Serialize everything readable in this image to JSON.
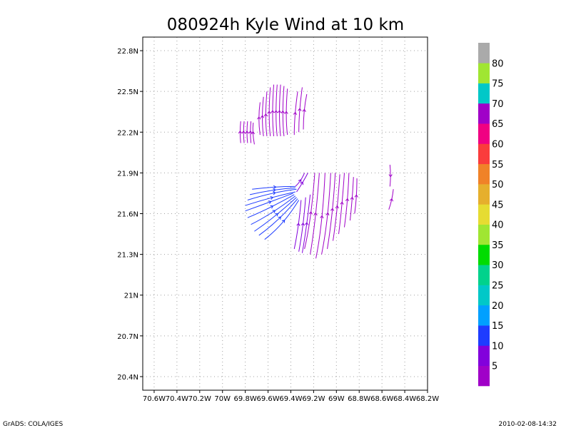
{
  "chart_data": {
    "type": "streamline",
    "title": "080924h Kyle Wind at 10 km",
    "xlim": [
      -70.7,
      -68.2
    ],
    "ylim": [
      20.3,
      22.9
    ],
    "x_ticks": [
      {
        "value": -70.6,
        "label": "70.6W"
      },
      {
        "value": -70.4,
        "label": "70.4W"
      },
      {
        "value": -70.2,
        "label": "70.2W"
      },
      {
        "value": -70.0,
        "label": "70W"
      },
      {
        "value": -69.8,
        "label": "69.8W"
      },
      {
        "value": -69.6,
        "label": "69.6W"
      },
      {
        "value": -69.4,
        "label": "69.4W"
      },
      {
        "value": -69.2,
        "label": "69.2W"
      },
      {
        "value": -69.0,
        "label": "69W"
      },
      {
        "value": -68.8,
        "label": "68.8W"
      },
      {
        "value": -68.6,
        "label": "68.6W"
      },
      {
        "value": -68.4,
        "label": "68.4W"
      },
      {
        "value": -68.2,
        "label": "68.2W"
      }
    ],
    "y_ticks": [
      {
        "value": 20.4,
        "label": "20.4N"
      },
      {
        "value": 20.7,
        "label": "20.7N"
      },
      {
        "value": 21.0,
        "label": "21N"
      },
      {
        "value": 21.3,
        "label": "21.3N"
      },
      {
        "value": 21.6,
        "label": "21.6N"
      },
      {
        "value": 21.9,
        "label": "21.9N"
      },
      {
        "value": 22.2,
        "label": "22.2N"
      },
      {
        "value": 22.5,
        "label": "22.5N"
      },
      {
        "value": 22.8,
        "label": "22.8N"
      }
    ],
    "grid": true,
    "colorbar": {
      "colors": [
        "#a000c8",
        "#8200dc",
        "#1e3cff",
        "#00a0ff",
        "#00c8c8",
        "#00d28c",
        "#00dc00",
        "#a0e632",
        "#e6dc32",
        "#e6af2d",
        "#f08228",
        "#fa3c3c",
        "#f00082",
        "#a000c8",
        "#00c8c8",
        "#a0e632",
        "#aaaaaa"
      ],
      "labels": [
        "5",
        "10",
        "15",
        "20",
        "25",
        "30",
        "35",
        "40",
        "45",
        "50",
        "55",
        "60",
        "65",
        "70",
        "75",
        "80"
      ]
    },
    "streamlines": [
      {
        "color": "#a000c8",
        "points": [
          [
            -69.84,
            22.12
          ],
          [
            -69.85,
            22.2
          ],
          [
            -69.84,
            22.28
          ]
        ]
      },
      {
        "color": "#a000c8",
        "points": [
          [
            -69.81,
            22.12
          ],
          [
            -69.82,
            22.2
          ],
          [
            -69.81,
            22.28
          ]
        ]
      },
      {
        "color": "#a000c8",
        "points": [
          [
            -69.78,
            22.12
          ],
          [
            -69.79,
            22.2
          ],
          [
            -69.78,
            22.28
          ]
        ]
      },
      {
        "color": "#a000c8",
        "points": [
          [
            -69.75,
            22.12
          ],
          [
            -69.76,
            22.2
          ],
          [
            -69.75,
            22.28
          ]
        ]
      },
      {
        "color": "#a000c8",
        "points": [
          [
            -69.72,
            22.11
          ],
          [
            -69.74,
            22.2
          ],
          [
            -69.73,
            22.27
          ]
        ]
      },
      {
        "color": "#a000c8",
        "points": [
          [
            -69.67,
            22.18
          ],
          [
            -69.69,
            22.3
          ],
          [
            -69.67,
            22.42
          ]
        ]
      },
      {
        "color": "#a000c8",
        "points": [
          [
            -69.64,
            22.17
          ],
          [
            -69.66,
            22.3
          ],
          [
            -69.64,
            22.46
          ]
        ]
      },
      {
        "color": "#a000c8",
        "points": [
          [
            -69.61,
            22.17
          ],
          [
            -69.63,
            22.3
          ],
          [
            -69.61,
            22.5
          ]
        ]
      },
      {
        "color": "#a000c8",
        "points": [
          [
            -69.58,
            22.17
          ],
          [
            -69.6,
            22.32
          ],
          [
            -69.58,
            22.53
          ]
        ]
      },
      {
        "color": "#a000c8",
        "points": [
          [
            -69.55,
            22.17
          ],
          [
            -69.57,
            22.32
          ],
          [
            -69.55,
            22.55
          ]
        ]
      },
      {
        "color": "#a000c8",
        "points": [
          [
            -69.52,
            22.17
          ],
          [
            -69.54,
            22.32
          ],
          [
            -69.52,
            22.55
          ]
        ]
      },
      {
        "color": "#a000c8",
        "points": [
          [
            -69.49,
            22.17
          ],
          [
            -69.51,
            22.32
          ],
          [
            -69.49,
            22.55
          ]
        ]
      },
      {
        "color": "#a000c8",
        "points": [
          [
            -69.46,
            22.17
          ],
          [
            -69.48,
            22.32
          ],
          [
            -69.46,
            22.54
          ]
        ]
      },
      {
        "color": "#a000c8",
        "points": [
          [
            -69.43,
            22.18
          ],
          [
            -69.45,
            22.32
          ],
          [
            -69.43,
            22.52
          ]
        ]
      },
      {
        "color": "#a000c8",
        "points": [
          [
            -69.37,
            22.18
          ],
          [
            -69.37,
            22.32
          ],
          [
            -69.34,
            22.5
          ]
        ]
      },
      {
        "color": "#a000c8",
        "points": [
          [
            -69.33,
            22.2
          ],
          [
            -69.33,
            22.35
          ],
          [
            -69.3,
            22.53
          ]
        ]
      },
      {
        "color": "#a000c8",
        "points": [
          [
            -69.29,
            22.22
          ],
          [
            -69.29,
            22.36
          ],
          [
            -69.26,
            22.48
          ]
        ]
      },
      {
        "color": "#1e3cff",
        "points": [
          [
            -69.74,
            21.78
          ],
          [
            -69.55,
            21.8
          ],
          [
            -69.36,
            21.8
          ]
        ]
      },
      {
        "color": "#1e3cff",
        "points": [
          [
            -69.76,
            21.74
          ],
          [
            -69.55,
            21.78
          ],
          [
            -69.36,
            21.79
          ]
        ]
      },
      {
        "color": "#1e3cff",
        "points": [
          [
            -69.78,
            21.7
          ],
          [
            -69.55,
            21.76
          ],
          [
            -69.35,
            21.78
          ]
        ]
      },
      {
        "color": "#1e3cff",
        "points": [
          [
            -69.8,
            21.66
          ],
          [
            -69.58,
            21.72
          ],
          [
            -69.36,
            21.76
          ]
        ]
      },
      {
        "color": "#1e3cff",
        "points": [
          [
            -69.8,
            21.62
          ],
          [
            -69.6,
            21.68
          ],
          [
            -69.38,
            21.75
          ]
        ]
      },
      {
        "color": "#1e3cff",
        "points": [
          [
            -69.78,
            21.57
          ],
          [
            -69.58,
            21.64
          ],
          [
            -69.37,
            21.74
          ]
        ]
      },
      {
        "color": "#1e3cff",
        "points": [
          [
            -69.75,
            21.52
          ],
          [
            -69.56,
            21.6
          ],
          [
            -69.36,
            21.73
          ]
        ]
      },
      {
        "color": "#1e3cff",
        "points": [
          [
            -69.72,
            21.47
          ],
          [
            -69.53,
            21.58
          ],
          [
            -69.35,
            21.72
          ]
        ]
      },
      {
        "color": "#1e3cff",
        "points": [
          [
            -69.68,
            21.44
          ],
          [
            -69.5,
            21.55
          ],
          [
            -69.34,
            21.71
          ]
        ]
      },
      {
        "color": "#1e3cff",
        "points": [
          [
            -69.63,
            21.41
          ],
          [
            -69.46,
            21.52
          ],
          [
            -69.33,
            21.7
          ]
        ]
      },
      {
        "color": "#8200dc",
        "points": [
          [
            -69.36,
            21.8
          ],
          [
            -69.31,
            21.84
          ],
          [
            -69.28,
            21.9
          ]
        ]
      },
      {
        "color": "#8200dc",
        "points": [
          [
            -69.35,
            21.76
          ],
          [
            -69.3,
            21.82
          ],
          [
            -69.25,
            21.9
          ]
        ]
      },
      {
        "color": "#8200dc",
        "points": [
          [
            -69.37,
            21.34
          ],
          [
            -69.33,
            21.5
          ],
          [
            -69.31,
            21.7
          ]
        ]
      },
      {
        "color": "#8200dc",
        "points": [
          [
            -69.33,
            21.32
          ],
          [
            -69.29,
            21.5
          ],
          [
            -69.27,
            21.72
          ]
        ]
      },
      {
        "color": "#8200dc",
        "points": [
          [
            -69.3,
            21.31
          ],
          [
            -69.26,
            21.5
          ],
          [
            -69.23,
            21.74
          ]
        ]
      },
      {
        "color": "#a000c8",
        "points": [
          [
            -69.28,
            21.34
          ],
          [
            -69.22,
            21.55
          ],
          [
            -69.19,
            21.9
          ]
        ]
      },
      {
        "color": "#a000c8",
        "points": [
          [
            -69.23,
            21.3
          ],
          [
            -69.18,
            21.55
          ],
          [
            -69.15,
            21.9
          ]
        ]
      },
      {
        "color": "#a000c8",
        "points": [
          [
            -69.18,
            21.27
          ],
          [
            -69.12,
            21.52
          ],
          [
            -69.1,
            21.9
          ]
        ]
      },
      {
        "color": "#a000c8",
        "points": [
          [
            -69.13,
            21.3
          ],
          [
            -69.07,
            21.55
          ],
          [
            -69.05,
            21.9
          ]
        ]
      },
      {
        "color": "#a000c8",
        "points": [
          [
            -69.08,
            21.34
          ],
          [
            -69.03,
            21.6
          ],
          [
            -69.01,
            21.9
          ]
        ]
      },
      {
        "color": "#a000c8",
        "points": [
          [
            -69.03,
            21.4
          ],
          [
            -68.99,
            21.62
          ],
          [
            -68.97,
            21.89
          ]
        ]
      },
      {
        "color": "#a000c8",
        "points": [
          [
            -68.98,
            21.45
          ],
          [
            -68.95,
            21.65
          ],
          [
            -68.93,
            21.9
          ]
        ]
      },
      {
        "color": "#a000c8",
        "points": [
          [
            -68.93,
            21.5
          ],
          [
            -68.9,
            21.68
          ],
          [
            -68.89,
            21.9
          ]
        ]
      },
      {
        "color": "#a000c8",
        "points": [
          [
            -68.88,
            21.55
          ],
          [
            -68.86,
            21.7
          ],
          [
            -68.85,
            21.87
          ]
        ]
      },
      {
        "color": "#a000c8",
        "points": [
          [
            -68.84,
            21.6
          ],
          [
            -68.82,
            21.72
          ],
          [
            -68.82,
            21.86
          ]
        ]
      },
      {
        "color": "#a000c8",
        "points": [
          [
            -68.53,
            21.96
          ],
          [
            -68.52,
            21.88
          ],
          [
            -68.53,
            21.8
          ]
        ]
      },
      {
        "color": "#a000c8",
        "points": [
          [
            -68.54,
            21.63
          ],
          [
            -68.51,
            21.7
          ],
          [
            -68.5,
            21.78
          ]
        ]
      }
    ]
  },
  "footer": {
    "left": "GrADS: COLA/IGES",
    "right": "2010-02-08-14:32"
  }
}
